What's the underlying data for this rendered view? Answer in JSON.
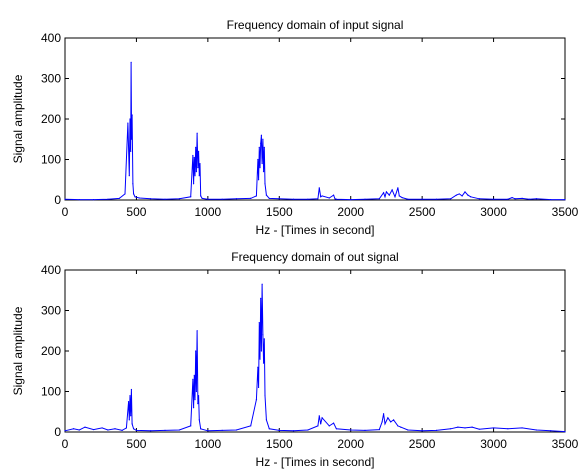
{
  "chart_data": [
    {
      "type": "line",
      "title": "Frequency domain of input signal",
      "xlabel": "Hz - [Times in second]",
      "ylabel": "Signal amplitude",
      "xlim": [
        0,
        3500
      ],
      "ylim": [
        0,
        400
      ],
      "xticks": [
        0,
        500,
        1000,
        1500,
        2000,
        2500,
        3000,
        3500
      ],
      "yticks": [
        0,
        100,
        200,
        300,
        400
      ],
      "grid": false,
      "color": "#0000ff",
      "series": [
        {
          "x": [
            0,
            100,
            200,
            300,
            380,
            420,
            440,
            450,
            455,
            460,
            463,
            466,
            470,
            475,
            480,
            490,
            520,
            600,
            700,
            800,
            880,
            895,
            900,
            905,
            910,
            915,
            920,
            925,
            930,
            935,
            940,
            945,
            950,
            960,
            1000,
            1100,
            1200,
            1300,
            1340,
            1350,
            1355,
            1360,
            1365,
            1370,
            1375,
            1380,
            1385,
            1390,
            1395,
            1400,
            1410,
            1430,
            1500,
            1600,
            1700,
            1770,
            1780,
            1790,
            1800,
            1850,
            1880,
            1890,
            1900,
            2000,
            2100,
            2200,
            2230,
            2240,
            2250,
            2270,
            2290,
            2310,
            2330,
            2340,
            2360,
            2400,
            2500,
            2600,
            2700,
            2740,
            2760,
            2780,
            2800,
            2820,
            2840,
            2900,
            3000,
            3100,
            3130,
            3150,
            3200,
            3250,
            3300,
            3400,
            3500
          ],
          "y": [
            2,
            1,
            1,
            2,
            4,
            15,
            190,
            60,
            200,
            120,
            340,
            150,
            210,
            40,
            15,
            8,
            5,
            3,
            2,
            3,
            8,
            110,
            40,
            105,
            60,
            130,
            70,
            165,
            80,
            120,
            60,
            90,
            10,
            4,
            2,
            2,
            3,
            4,
            10,
            100,
            50,
            130,
            80,
            140,
            160,
            90,
            150,
            70,
            130,
            40,
            12,
            4,
            3,
            2,
            2,
            3,
            30,
            8,
            10,
            5,
            12,
            3,
            2,
            1,
            2,
            3,
            18,
            8,
            20,
            12,
            25,
            8,
            30,
            10,
            6,
            2,
            2,
            2,
            3,
            12,
            15,
            10,
            20,
            12,
            8,
            3,
            2,
            2,
            6,
            3,
            4,
            2,
            3,
            1,
            1
          ]
        }
      ]
    },
    {
      "type": "line",
      "title": "Frequency domain of out signal",
      "xlabel": "Hz - [Times in second]",
      "ylabel": "Signal amplitude",
      "xlim": [
        0,
        3500
      ],
      "ylim": [
        0,
        400
      ],
      "xticks": [
        0,
        500,
        1000,
        1500,
        2000,
        2500,
        3000,
        3500
      ],
      "yticks": [
        0,
        100,
        200,
        300,
        400
      ],
      "grid": false,
      "color": "#0000ff",
      "series": [
        {
          "x": [
            0,
            60,
            100,
            140,
            200,
            260,
            300,
            350,
            400,
            430,
            445,
            450,
            455,
            460,
            465,
            470,
            480,
            500,
            600,
            700,
            800,
            880,
            895,
            900,
            905,
            910,
            915,
            920,
            925,
            930,
            935,
            940,
            950,
            1000,
            1100,
            1200,
            1300,
            1340,
            1350,
            1355,
            1360,
            1365,
            1370,
            1375,
            1380,
            1385,
            1390,
            1395,
            1400,
            1410,
            1430,
            1500,
            1600,
            1700,
            1770,
            1780,
            1790,
            1800,
            1850,
            1880,
            1900,
            2000,
            2100,
            2200,
            2220,
            2230,
            2240,
            2260,
            2280,
            2300,
            2330,
            2350,
            2400,
            2500,
            2600,
            2700,
            2750,
            2800,
            2850,
            2900,
            3000,
            3100,
            3200,
            3300,
            3400,
            3500
          ],
          "y": [
            3,
            8,
            5,
            12,
            6,
            10,
            5,
            8,
            4,
            10,
            75,
            30,
            90,
            40,
            105,
            20,
            8,
            4,
            3,
            4,
            5,
            15,
            130,
            60,
            140,
            80,
            200,
            100,
            250,
            70,
            90,
            30,
            8,
            3,
            4,
            5,
            15,
            80,
            160,
            110,
            270,
            180,
            330,
            200,
            365,
            240,
            170,
            230,
            90,
            30,
            8,
            4,
            3,
            5,
            15,
            40,
            20,
            35,
            15,
            22,
            8,
            5,
            4,
            6,
            25,
            45,
            20,
            35,
            25,
            30,
            15,
            12,
            5,
            3,
            4,
            8,
            12,
            10,
            12,
            7,
            10,
            8,
            10,
            5,
            3,
            1
          ]
        }
      ]
    }
  ]
}
